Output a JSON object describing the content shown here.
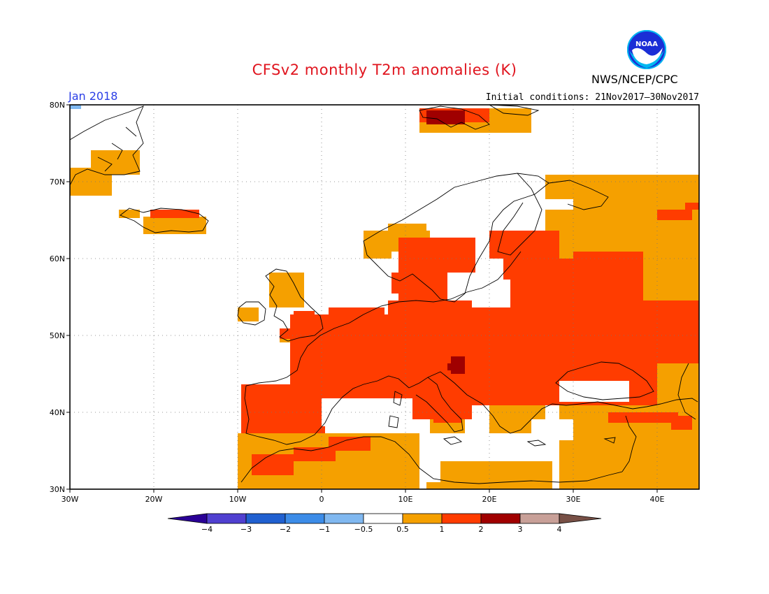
{
  "title": "CFSv2 monthly T2m anomalies (K)",
  "forecast_month": "Jan 2018",
  "initial_conditions": "Initial conditions: 21Nov2017–30Nov2017",
  "agency": "NWS/NCEP/CPC",
  "logo": {
    "icon": "noaa-logo-icon",
    "text": "NOAA"
  },
  "map": {
    "lon_range": [
      -30,
      45
    ],
    "lat_range": [
      30,
      80
    ],
    "lon_ticks": [
      "30W",
      "20W",
      "10W",
      "0",
      "10E",
      "20E",
      "30E",
      "40E"
    ],
    "lat_ticks": [
      "30N",
      "40N",
      "50N",
      "60N",
      "70N",
      "80N"
    ],
    "grid": "dotted"
  },
  "legend": {
    "labels": [
      "−4",
      "−3",
      "−2",
      "−1",
      "−0.5",
      "0.5",
      "1",
      "2",
      "3",
      "4"
    ],
    "colors": [
      "#2a0096",
      "#5040d0",
      "#2060d0",
      "#3c8ce8",
      "#80b8f0",
      "#ffffff",
      "#f5a000",
      "#ff3c00",
      "#a00000",
      "#c8a098",
      "#785046"
    ]
  },
  "colors": {
    "title": "#e0141e",
    "period": "#2a3ee6",
    "anomaly_05_1": "#f5a000",
    "anomaly_1_2": "#ff3c00",
    "anomaly_2_3": "#a00000",
    "anomaly_neg": "#80b8f0"
  }
}
